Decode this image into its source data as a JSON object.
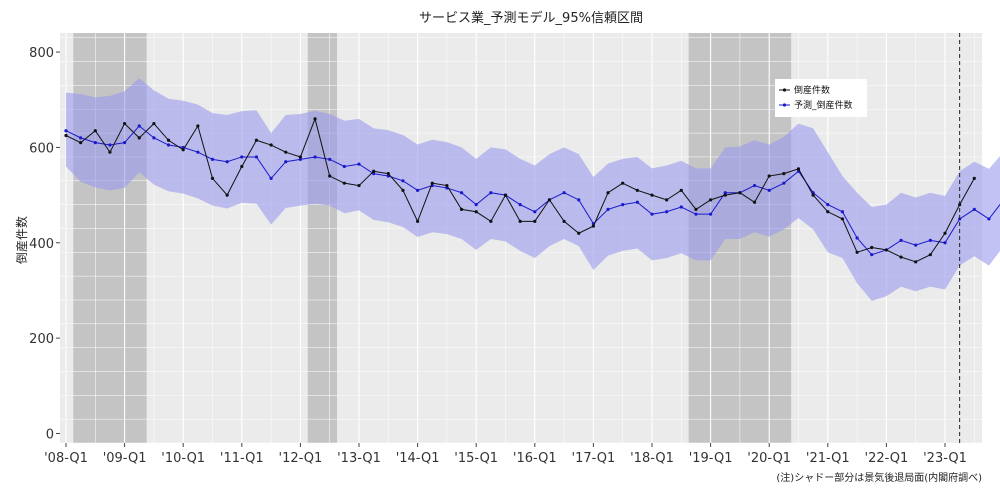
{
  "chart_data": {
    "type": "line",
    "title": "サービス業_予測モデル_95%信頼区間",
    "xlabel": "",
    "ylabel": "倒産件数",
    "note": "(注)シャドー部分は景気後退局面(内閣府調べ)",
    "ylim": [
      -20,
      840
    ],
    "yticks": [
      0,
      200,
      400,
      600,
      800
    ],
    "grid": true,
    "legend_position": "top-right",
    "x_start": "2008-Q1",
    "x_frequency": "quarterly",
    "x_tick_labels": [
      "'08-Q1",
      "'09-Q1",
      "'10-Q1",
      "'11-Q1",
      "'12-Q1",
      "'13-Q1",
      "'14-Q1",
      "'15-Q1",
      "'16-Q1",
      "'17-Q1",
      "'18-Q1",
      "'19-Q1",
      "'20-Q1",
      "'21-Q1",
      "'22-Q1",
      "'23-Q1"
    ],
    "recession_shading": [
      {
        "start": "2008-Q2",
        "end": "2009-Q2"
      },
      {
        "start": "2012-Q2",
        "end": "2012-Q3"
      },
      {
        "start": "2018-Q4",
        "end": "2020-Q2"
      }
    ],
    "forecast_start_line": "2023-Q2",
    "series": [
      {
        "name": "倒産件数",
        "color": "#111111",
        "values": [
          625,
          610,
          635,
          590,
          650,
          620,
          650,
          615,
          595,
          645,
          535,
          500,
          560,
          615,
          605,
          590,
          580,
          660,
          540,
          525,
          520,
          550,
          545,
          510,
          445,
          525,
          520,
          470,
          465,
          445,
          500,
          445,
          445,
          490,
          445,
          420,
          435,
          505,
          525,
          510,
          500,
          490,
          510,
          470,
          490,
          500,
          505,
          485,
          540,
          545,
          555,
          500,
          465,
          450,
          380,
          390,
          385,
          370,
          360,
          375,
          420,
          480,
          535
        ]
      },
      {
        "name": "予測_倒産件数",
        "color": "#1a1acc",
        "values": [
          635,
          620,
          610,
          605,
          610,
          645,
          620,
          605,
          600,
          590,
          575,
          570,
          580,
          580,
          535,
          570,
          575,
          580,
          575,
          560,
          565,
          545,
          540,
          530,
          510,
          520,
          515,
          505,
          480,
          505,
          500,
          480,
          465,
          490,
          505,
          490,
          440,
          470,
          480,
          485,
          460,
          465,
          475,
          460,
          460,
          505,
          505,
          520,
          510,
          525,
          550,
          505,
          480,
          465,
          410,
          375,
          385,
          405,
          395,
          405,
          400,
          450,
          470,
          450,
          490
        ]
      }
    ],
    "band": {
      "name": "95%信頼区間",
      "color": "#9999ee",
      "upper": [
        715,
        712,
        705,
        708,
        718,
        745,
        720,
        702,
        698,
        690,
        672,
        668,
        676,
        678,
        630,
        668,
        670,
        677,
        670,
        656,
        660,
        640,
        636,
        626,
        606,
        616,
        611,
        600,
        576,
        600,
        596,
        576,
        562,
        586,
        600,
        586,
        538,
        566,
        576,
        580,
        556,
        562,
        572,
        556,
        556,
        600,
        602,
        615,
        606,
        622,
        650,
        640,
        590,
        540,
        505,
        475,
        480,
        505,
        495,
        505,
        498,
        550,
        570,
        555,
        590
      ],
      "lower": [
        560,
        528,
        516,
        510,
        515,
        548,
        522,
        508,
        503,
        493,
        478,
        472,
        484,
        482,
        438,
        473,
        478,
        482,
        478,
        462,
        468,
        448,
        443,
        433,
        412,
        422,
        418,
        408,
        385,
        408,
        403,
        383,
        368,
        393,
        408,
        393,
        343,
        373,
        383,
        388,
        363,
        368,
        378,
        363,
        363,
        408,
        408,
        422,
        413,
        428,
        452,
        428,
        380,
        368,
        315,
        278,
        288,
        308,
        298,
        308,
        302,
        352,
        372,
        352,
        393
      ]
    }
  }
}
